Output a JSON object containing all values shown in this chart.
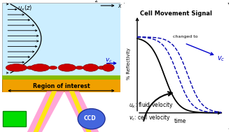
{
  "fig_w": 3.3,
  "fig_h": 1.89,
  "dpi": 100,
  "left_bg": "#cceeff",
  "substrate_color": "#f0a000",
  "substrate_edge": "#c07800",
  "green_stripe": "#88bb00",
  "cell_color": "#cc0000",
  "cell_edge": "#880000",
  "arrow_blue": "#0000aa",
  "vc_color": "#0000cc",
  "right_box_bg": "white",
  "right_box_edge": "black",
  "curve_solid": "black",
  "curve_dashed": "#0000aa",
  "title_right": "Cell Movement Signal",
  "xlabel_right": "time",
  "ylabel_right": "% Reflectivity",
  "annotation_text": "changed to",
  "leg1": "$u_x$: fluid velocity",
  "leg2": "$v_c$: cell velocity",
  "green_laser": "#00dd00",
  "ccd_color": "#4466dd",
  "beam_pink": "#ff88cc",
  "beam_yellow": "#ffee00"
}
